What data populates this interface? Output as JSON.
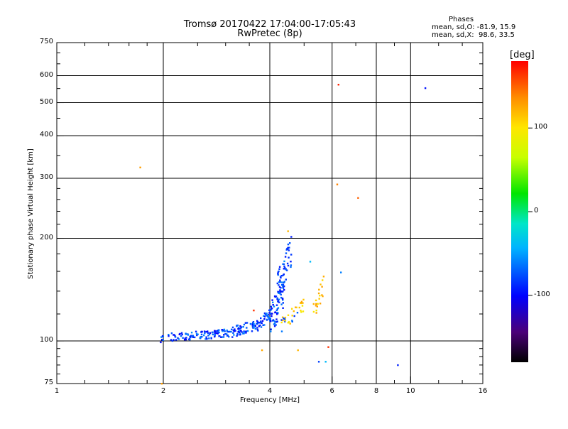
{
  "title": {
    "line1": "Tromsø 20170422 17:04:00-17:05:43",
    "line2": "RwPretec (8p)"
  },
  "phases_info": {
    "title": "Phases",
    "o_line": "mean, sd,O: -81.9, 15.9",
    "x_line": "mean, sd,X:  98.6, 33.5"
  },
  "colorbar": {
    "unit_label": "[deg]",
    "ticks": [
      {
        "label": "100",
        "value": 100
      },
      {
        "label": "0",
        "value": 0
      },
      {
        "label": "-100",
        "value": -100
      }
    ],
    "range": [
      -180,
      180
    ]
  },
  "chart_data": {
    "type": "scatter",
    "title": "Tromsø 20170422 17:04:00-17:05:43",
    "subtitle": "RwPretec (8p)",
    "xlabel": "Frequency [MHz]",
    "ylabel": "Stationary phase Virtual Height [km]",
    "xscale": "log",
    "yscale": "log",
    "xlim": [
      1,
      16
    ],
    "ylim": [
      75,
      750
    ],
    "x_ticks": [
      {
        "label": "1",
        "value": 1
      },
      {
        "label": "2",
        "value": 2
      },
      {
        "label": "4",
        "value": 4
      },
      {
        "label": "6",
        "value": 6
      },
      {
        "label": "8",
        "value": 8
      },
      {
        "label": "10",
        "value": 10
      },
      {
        "label": "16",
        "value": 16
      }
    ],
    "y_ticks": [
      {
        "label": "750",
        "value": 750
      },
      {
        "label": "600",
        "value": 600
      },
      {
        "label": "500",
        "value": 500
      },
      {
        "label": "400",
        "value": 400
      },
      {
        "label": "300",
        "value": 300
      },
      {
        "label": "200",
        "value": 200
      },
      {
        "label": "100",
        "value": 100
      },
      {
        "label": "75",
        "value": 75
      }
    ],
    "x_grid": [
      2,
      4,
      6,
      8,
      10
    ],
    "y_grid": [
      100,
      200,
      300,
      400,
      500,
      600
    ],
    "colormap": "rainbow: black(-180) to red(180)",
    "trace_o": [
      {
        "f_start": 1.96,
        "f_end": 2.1,
        "h_start": 101,
        "h_end": 105,
        "spread": 2,
        "n": 8
      },
      {
        "f_start": 2.1,
        "f_end": 2.6,
        "h_start": 103,
        "h_end": 104,
        "spread": 3,
        "n": 50
      },
      {
        "f_start": 2.6,
        "f_end": 3.1,
        "h_start": 104,
        "h_end": 106,
        "spread": 3,
        "n": 55
      },
      {
        "f_start": 3.1,
        "f_end": 3.6,
        "h_start": 106,
        "h_end": 111,
        "spread": 4,
        "n": 55
      },
      {
        "f_start": 3.6,
        "f_end": 4.05,
        "h_start": 110,
        "h_end": 120,
        "spread": 5,
        "n": 55
      },
      {
        "f_start": 4.0,
        "f_end": 4.4,
        "h_start": 115,
        "h_end": 140,
        "spread": 14,
        "n": 60
      },
      {
        "f_start": 4.2,
        "f_end": 4.6,
        "h_start": 140,
        "h_end": 185,
        "spread": 18,
        "n": 60
      }
    ],
    "trace_x": [
      {
        "f_start": 4.3,
        "f_end": 5.0,
        "h_start": 112,
        "h_end": 128,
        "spread": 6,
        "n": 35
      },
      {
        "f_start": 5.3,
        "f_end": 5.7,
        "h_start": 120,
        "h_end": 148,
        "spread": 10,
        "n": 20
      }
    ],
    "isolated_points": [
      {
        "f": 1.72,
        "h": 323,
        "phase": 130
      },
      {
        "f": 6.25,
        "h": 565,
        "phase": 170
      },
      {
        "f": 11.0,
        "h": 552,
        "phase": -95
      },
      {
        "f": 6.2,
        "h": 288,
        "phase": 140
      },
      {
        "f": 7.1,
        "h": 263,
        "phase": 150
      },
      {
        "f": 6.35,
        "h": 159,
        "phase": -60
      },
      {
        "f": 5.2,
        "h": 171,
        "phase": -40
      },
      {
        "f": 4.5,
        "h": 210,
        "phase": 120
      },
      {
        "f": 3.6,
        "h": 123,
        "phase": 165
      },
      {
        "f": 3.8,
        "h": 94,
        "phase": 125
      },
      {
        "f": 4.8,
        "h": 94,
        "phase": 120
      },
      {
        "f": 5.85,
        "h": 96,
        "phase": 165
      },
      {
        "f": 5.5,
        "h": 87,
        "phase": -80
      },
      {
        "f": 5.75,
        "h": 87,
        "phase": -40
      },
      {
        "f": 9.2,
        "h": 85,
        "phase": -90
      },
      {
        "f": 1.98,
        "h": 75,
        "phase": 130
      }
    ]
  }
}
